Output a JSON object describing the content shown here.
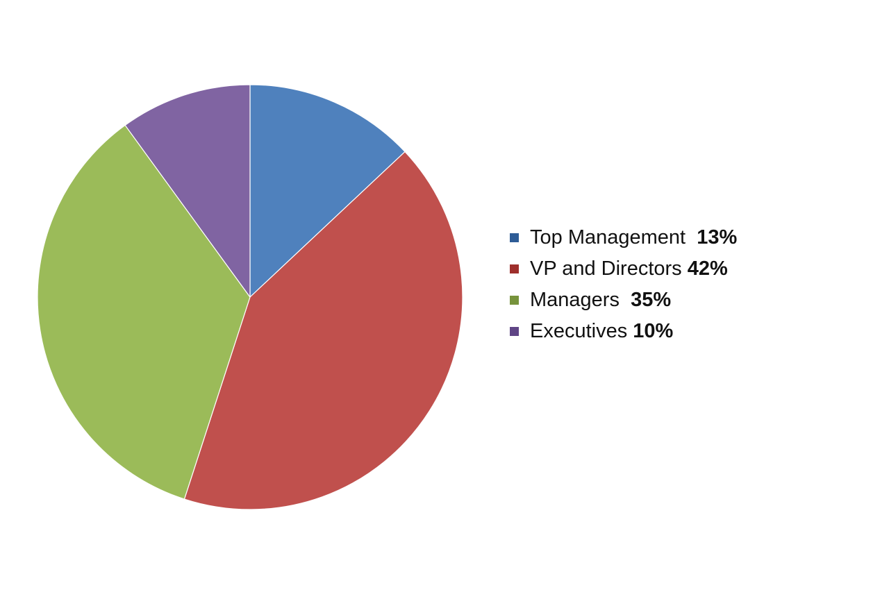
{
  "chart_data": {
    "type": "pie",
    "categories": [
      "Top Management",
      "VP and Directors",
      "Managers",
      "Executives"
    ],
    "values": [
      13,
      42,
      35,
      10
    ],
    "unit": "%",
    "colors": [
      "#4F81BD",
      "#C0504D",
      "#9BBB59",
      "#8064A2"
    ],
    "legend_swatch_colors": [
      "#2E5C96",
      "#9E2F2C",
      "#77933C",
      "#5F4585"
    ],
    "start_angle": "12 o'clock",
    "direction": "clockwise",
    "legend_position": "right",
    "title": ""
  },
  "legend": [
    {
      "label": "Top Management  ",
      "value": "13%"
    },
    {
      "label": "VP and Directors ",
      "value": "42%"
    },
    {
      "label": "Managers  ",
      "value": "35%"
    },
    {
      "label": "Executives ",
      "value": "10%"
    }
  ]
}
